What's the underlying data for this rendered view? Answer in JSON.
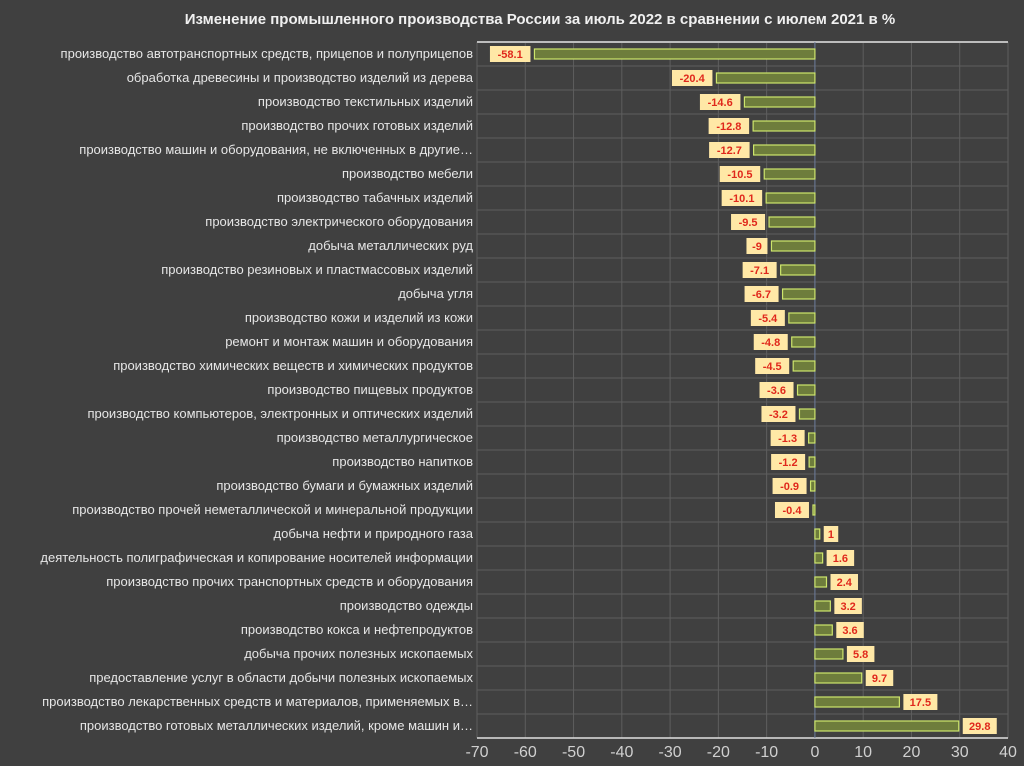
{
  "chart_data": {
    "type": "bar",
    "orientation": "horizontal",
    "title": "Изменение промышленного производства России за июль 2022 в сравнении с июлем 2021 в %",
    "xlabel": "",
    "ylabel": "",
    "xlim": [
      -70,
      40
    ],
    "xticks": [
      "-70",
      "-60",
      "-50",
      "-40",
      "-30",
      "-20",
      "-10",
      "0",
      "10",
      "20",
      "30",
      "40"
    ],
    "grid": true,
    "legend": "none",
    "colors": {
      "background": "#404040",
      "bar_fill": "#6e7d3c",
      "bar_border": "#cde56c",
      "label_box": "#ffe8a6",
      "label_text": "#e0281c"
    },
    "categories": [
      "производство автотранспортных средств, прицепов и полуприцепов",
      "обработка древесины и производство изделий из дерева",
      "производство текстильных изделий",
      "производство прочих готовых изделий",
      "производство машин и оборудования, не включенных в другие…",
      "производство мебели",
      "производство табачных изделий",
      "производство электрического оборудования",
      "добыча металлических руд",
      "производство резиновых и пластмассовых изделий",
      "добыча угля",
      "производство кожи и изделий из кожи",
      "ремонт и монтаж машин и оборудования",
      "производство химических веществ и химических продуктов",
      "производство пищевых продуктов",
      "производство компьютеров, электронных  и оптических изделий",
      "производство металлургическое",
      "производство напитков",
      "производство бумаги и бумажных изделий",
      "производство прочей  неметаллической и  минеральной продукции",
      "добыча нефти и природного газа",
      "деятельность полиграфическая и копирование  носителей информации",
      "производство прочих транспортных средств и оборудования",
      "производство одежды",
      "производство кокса и нефтепродуктов",
      "добыча прочих полезных ископаемых",
      "предоставление услуг в области добычи полезных ископаемых",
      "производство лекарственных средств и материалов, применяемых в…",
      "производство готовых металлических изделий, кроме машин и…"
    ],
    "values": [
      -58.1,
      -20.4,
      -14.6,
      -12.8,
      -12.7,
      -10.5,
      -10.1,
      -9.5,
      -9,
      -7.1,
      -6.7,
      -5.4,
      -4.8,
      -4.5,
      -3.6,
      -3.2,
      -1.3,
      -1.2,
      -0.9,
      -0.4,
      1,
      1.6,
      2.4,
      3.2,
      3.6,
      5.8,
      9.7,
      17.5,
      29.8
    ]
  }
}
